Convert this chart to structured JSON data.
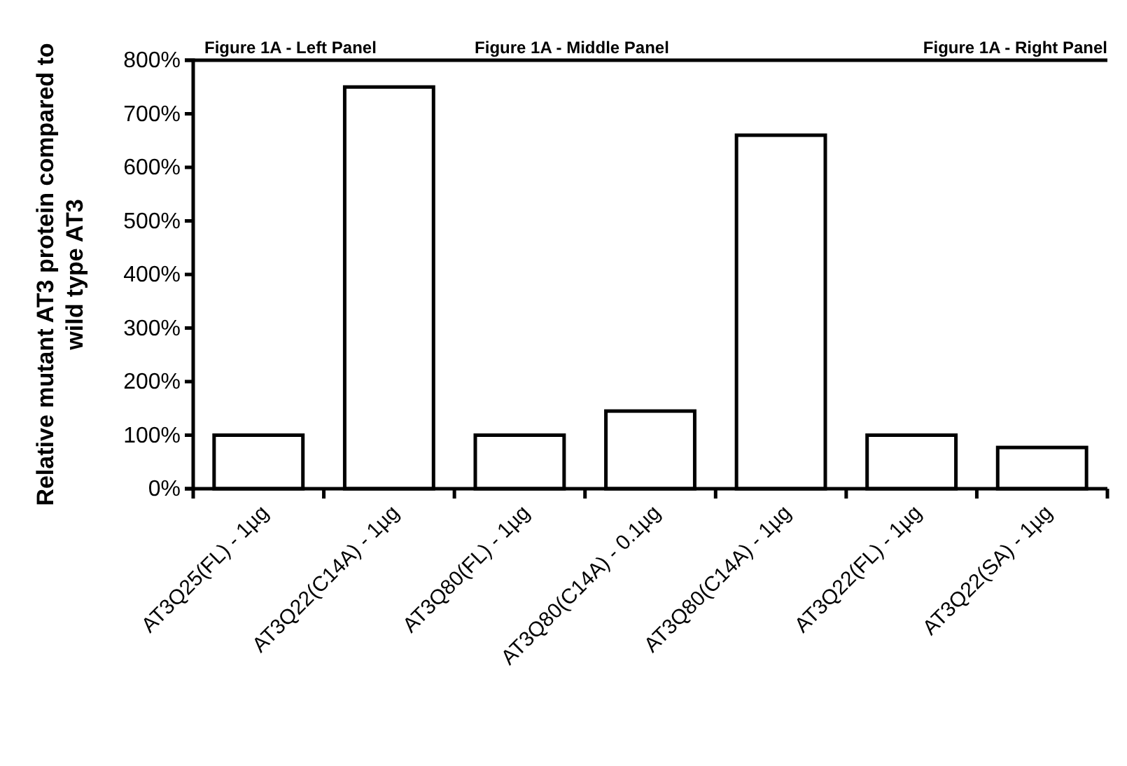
{
  "chart_data": {
    "type": "bar",
    "ylabel": "Relative mutant AT3 protein compared to wild type AT3",
    "categories": [
      "AT3Q25(FL) - 1µg",
      "AT3Q22(C14A) - 1µg",
      "AT3Q80(FL) - 1µg",
      "AT3Q80(C14A) - 0.1µg",
      "AT3Q80(C14A) - 1µg",
      "AT3Q22(FL) - 1µg",
      "AT3Q22(SA) - 1µg"
    ],
    "values": [
      100,
      750,
      100,
      145,
      660,
      100,
      77
    ],
    "color": "#ffffff",
    "ylim": [
      0,
      800
    ],
    "yticks": [
      {
        "value": 0,
        "label": "0%"
      },
      {
        "value": 100,
        "label": "100%"
      },
      {
        "value": 200,
        "label": "200%"
      },
      {
        "value": 300,
        "label": "300%"
      },
      {
        "value": 400,
        "label": "400%"
      },
      {
        "value": 500,
        "label": "500%"
      },
      {
        "value": 600,
        "label": "600%"
      },
      {
        "value": 700,
        "label": "700%"
      },
      {
        "value": 800,
        "label": "800%"
      }
    ],
    "grid": false,
    "annotations": [
      "Figure 1A - Left Panel",
      "Figure 1A - Middle Panel",
      "Figure 1A - Right Panel"
    ]
  }
}
